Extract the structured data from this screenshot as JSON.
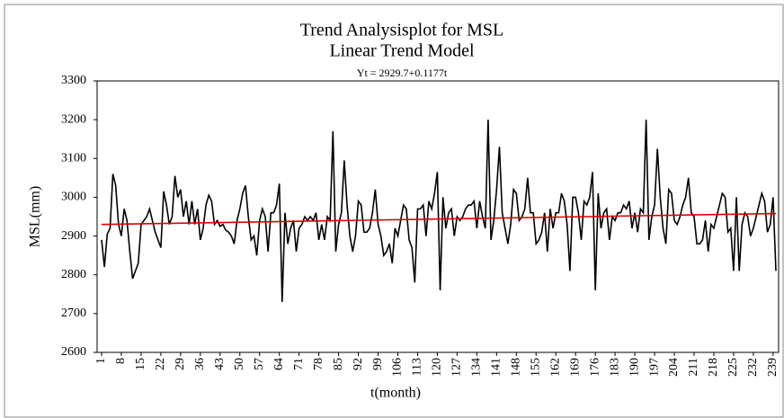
{
  "chart_data": {
    "type": "line",
    "title": "Trend Analysisplot for MSL",
    "subtitle": "Linear Trend Model",
    "annotation": "Yt = 2929.7+0.1177t",
    "x_label": "t(month)",
    "y_label": "MSL(mm)",
    "x": [
      1,
      2,
      3,
      4,
      5,
      6,
      7,
      8,
      9,
      10,
      11,
      12,
      13,
      14,
      15,
      16,
      17,
      18,
      19,
      20,
      21,
      22,
      23,
      24,
      25,
      26,
      27,
      28,
      29,
      30,
      31,
      32,
      33,
      34,
      35,
      36,
      37,
      38,
      39,
      40,
      41,
      42,
      43,
      44,
      45,
      46,
      47,
      48,
      49,
      50,
      51,
      52,
      53,
      54,
      55,
      56,
      57,
      58,
      59,
      60,
      61,
      62,
      63,
      64,
      65,
      66,
      67,
      68,
      69,
      70,
      71,
      72,
      73,
      74,
      75,
      76,
      77,
      78,
      79,
      80,
      81,
      82,
      83,
      84,
      85,
      86,
      87,
      88,
      89,
      90,
      91,
      92,
      93,
      94,
      95,
      96,
      97,
      98,
      99,
      100,
      101,
      102,
      103,
      104,
      105,
      106,
      107,
      108,
      109,
      110,
      111,
      112,
      113,
      114,
      115,
      116,
      117,
      118,
      119,
      120,
      121,
      122,
      123,
      124,
      125,
      126,
      127,
      128,
      129,
      130,
      131,
      132,
      133,
      134,
      135,
      136,
      137,
      138,
      139,
      140,
      141,
      142,
      143,
      144,
      145,
      146,
      147,
      148,
      149,
      150,
      151,
      152,
      153,
      154,
      155,
      156,
      157,
      158,
      159,
      160,
      161,
      162,
      163,
      164,
      165,
      166,
      167,
      168,
      169,
      170,
      171,
      172,
      173,
      174,
      175,
      176,
      177,
      178,
      179,
      180,
      181,
      182,
      183,
      184,
      185,
      186,
      187,
      188,
      189,
      190,
      191,
      192,
      193,
      194,
      195,
      196,
      197,
      198,
      199,
      200,
      201,
      202,
      203,
      204,
      205,
      206,
      207,
      208,
      209,
      210,
      211,
      212,
      213,
      214,
      215,
      216,
      217,
      218,
      219,
      220,
      221,
      222,
      223,
      224,
      225,
      226,
      227,
      228,
      229,
      230,
      231,
      232,
      233,
      234,
      235,
      236,
      237,
      238,
      239,
      240
    ],
    "series": [
      {
        "color": "#000000",
        "values": [
          2890,
          2820,
          2905,
          2920,
          3060,
          3030,
          2930,
          2900,
          2970,
          2940,
          2860,
          2790,
          2810,
          2830,
          2930,
          2940,
          2950,
          2970,
          2940,
          2910,
          2890,
          2870,
          3015,
          2980,
          2930,
          2950,
          3055,
          3000,
          3020,
          2950,
          2990,
          2930,
          2990,
          2930,
          2970,
          2890,
          2920,
          2980,
          3005,
          2990,
          2930,
          2940,
          2925,
          2930,
          2915,
          2910,
          2900,
          2880,
          2940,
          2970,
          3010,
          3030,
          2950,
          2890,
          2900,
          2850,
          2940,
          2970,
          2950,
          2860,
          2960,
          2960,
          2980,
          3035,
          2730,
          2960,
          2880,
          2920,
          2940,
          2860,
          2920,
          2930,
          2950,
          2940,
          2950,
          2940,
          2960,
          2890,
          2930,
          2890,
          2950,
          2940,
          3170,
          2860,
          2930,
          2960,
          3095,
          2980,
          2900,
          2860,
          2900,
          2990,
          2980,
          2910,
          2910,
          2920,
          2960,
          3020,
          2930,
          2900,
          2850,
          2860,
          2880,
          2830,
          2920,
          2900,
          2940,
          2980,
          2970,
          2890,
          2870,
          2780,
          2970,
          2970,
          2980,
          2900,
          2990,
          2970,
          3010,
          3065,
          2760,
          3000,
          2920,
          2960,
          2970,
          2900,
          2950,
          2940,
          2950,
          2970,
          2980,
          2980,
          2990,
          2920,
          2990,
          2950,
          2920,
          3200,
          2890,
          2940,
          3020,
          3130,
          2960,
          2920,
          2880,
          2930,
          3020,
          3010,
          2940,
          2950,
          2970,
          3050,
          2960,
          2960,
          2880,
          2890,
          2910,
          2960,
          2860,
          2970,
          2920,
          2960,
          2960,
          3010,
          2990,
          2930,
          2810,
          3000,
          3000,
          2960,
          2890,
          2990,
          2980,
          3000,
          3065,
          2760,
          3010,
          2920,
          2960,
          2970,
          2890,
          2950,
          2940,
          2960,
          2960,
          2980,
          2970,
          2990,
          2920,
          2960,
          2910,
          2970,
          2960,
          3200,
          2890,
          2950,
          2980,
          3125,
          3000,
          2920,
          2880,
          3020,
          3010,
          2940,
          2930,
          2950,
          2980,
          3000,
          3050,
          2960,
          2950,
          2880,
          2880,
          2890,
          2940,
          2860,
          2930,
          2920,
          2950,
          2980,
          3010,
          3000,
          2910,
          2920,
          2810,
          3000,
          2810,
          2930,
          2960,
          2950,
          2900,
          2920,
          2950,
          2980,
          3010,
          2990,
          2910,
          2930,
          3000,
          2810
        ]
      }
    ],
    "trend": {
      "intercept": 2929.7,
      "slope": 0.1177,
      "color": "#e00000"
    },
    "xlim": [
      1,
      240
    ],
    "xticks": [
      1,
      8,
      15,
      22,
      29,
      36,
      43,
      50,
      57,
      64,
      71,
      78,
      85,
      92,
      99,
      106,
      113,
      120,
      127,
      134,
      141,
      148,
      155,
      162,
      169,
      176,
      183,
      190,
      197,
      204,
      211,
      218,
      225,
      232,
      239
    ],
    "ylim": [
      2600,
      3300
    ],
    "yticks": [
      2600,
      2700,
      2800,
      2900,
      3000,
      3100,
      3200,
      3300
    ],
    "grid": false
  }
}
